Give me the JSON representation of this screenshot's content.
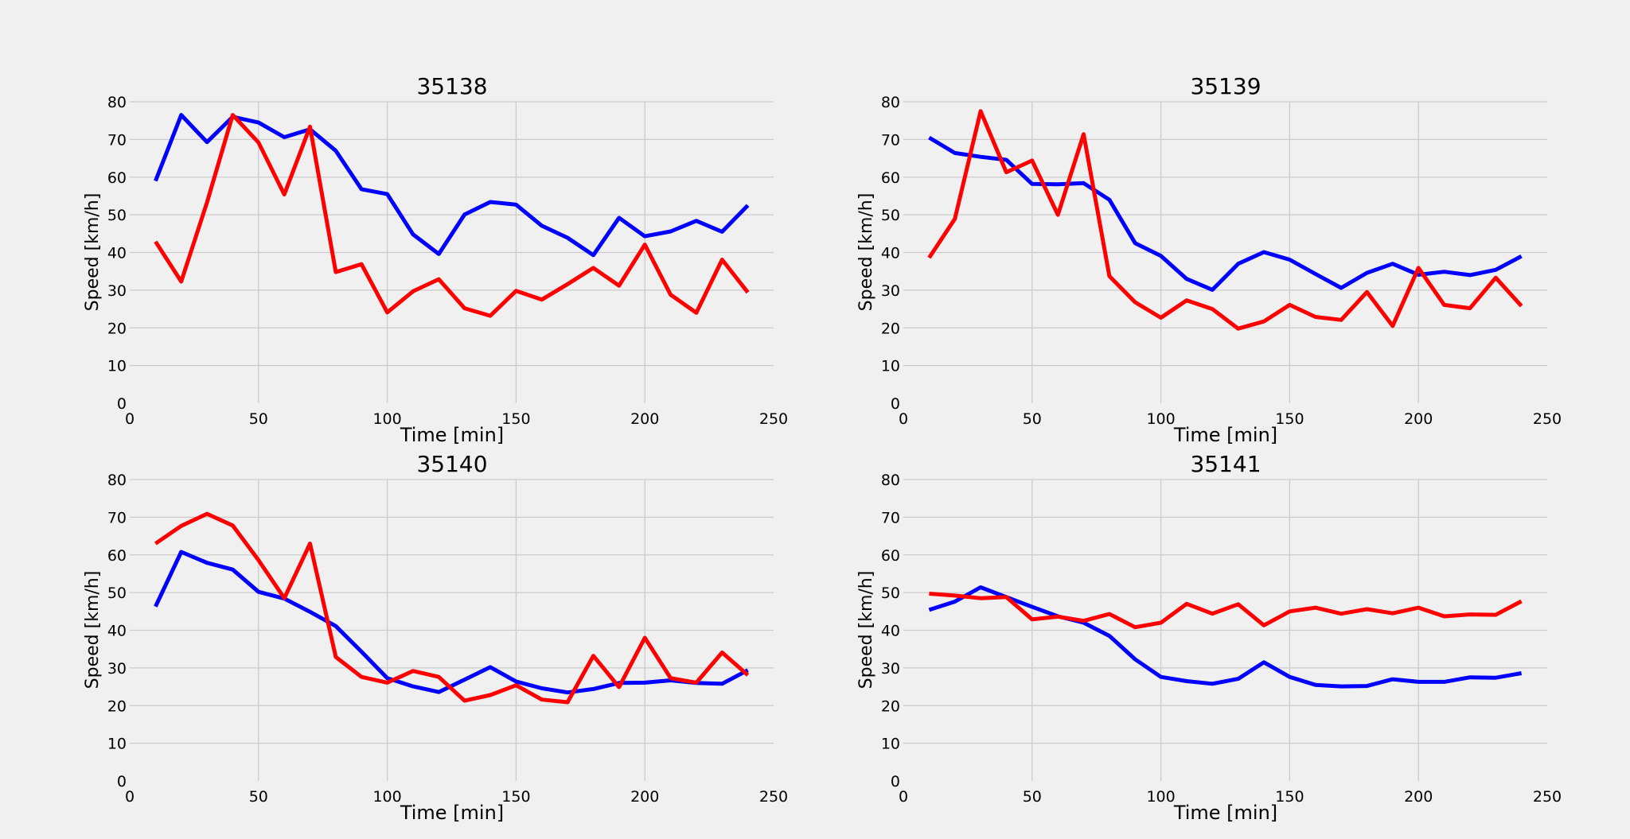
{
  "figure": {
    "background": "#f0f0f0"
  },
  "colors": {
    "series_a": "#0000ff",
    "series_b": "#ff0000",
    "grid": "#cbcbcb",
    "text": "#000000"
  },
  "chart_data": [
    {
      "type": "line",
      "title": "35138",
      "xlabel": "Time [min]",
      "ylabel": "Speed [km/h]",
      "xlim": [
        0,
        250
      ],
      "ylim": [
        0,
        80
      ],
      "xticks": [
        0,
        50,
        100,
        150,
        200,
        250
      ],
      "yticks": [
        0,
        10,
        20,
        30,
        40,
        50,
        60,
        70,
        80
      ],
      "grid": true,
      "x": [
        10,
        20,
        30,
        40,
        50,
        60,
        70,
        80,
        90,
        100,
        110,
        120,
        130,
        140,
        150,
        160,
        170,
        180,
        190,
        200,
        210,
        220,
        230,
        240
      ],
      "series": [
        {
          "color": "#0000ff",
          "values": [
            59,
            76.5,
            69.3,
            76,
            74.5,
            70.6,
            72.7,
            67,
            56.8,
            55.5,
            44.8,
            39.6,
            50.1,
            53.4,
            52.7,
            47.1,
            43.9,
            39.3,
            49.2,
            44.3,
            45.6,
            48.4,
            45.5,
            52.5
          ]
        },
        {
          "color": "#ff0000",
          "values": [
            42.9,
            32.3,
            53.3,
            76.5,
            69.2,
            55.4,
            73.4,
            34.8,
            36.9,
            24.1,
            29.7,
            32.9,
            25.2,
            23.2,
            29.8,
            27.5,
            31.6,
            35.9,
            31.2,
            42.1,
            28.8,
            24,
            38.1,
            29.4
          ]
        }
      ]
    },
    {
      "type": "line",
      "title": "35139",
      "xlabel": "Time [min]",
      "ylabel": "Speed [km/h]",
      "xlim": [
        0,
        250
      ],
      "ylim": [
        0,
        80
      ],
      "xticks": [
        0,
        50,
        100,
        150,
        200,
        250
      ],
      "yticks": [
        0,
        10,
        20,
        30,
        40,
        50,
        60,
        70,
        80
      ],
      "grid": true,
      "x": [
        10,
        20,
        30,
        40,
        50,
        60,
        70,
        80,
        90,
        100,
        110,
        120,
        130,
        140,
        150,
        160,
        170,
        180,
        190,
        200,
        210,
        220,
        230,
        240
      ],
      "series": [
        {
          "color": "#0000ff",
          "values": [
            70.5,
            66.4,
            65.4,
            64.6,
            58.2,
            58.1,
            58.4,
            54,
            42.5,
            39.1,
            33,
            30.1,
            37,
            40.1,
            38.1,
            34.3,
            30.6,
            34.6,
            37,
            34.1,
            34.9,
            34,
            35.4,
            39
          ]
        },
        {
          "color": "#ff0000",
          "values": [
            38.6,
            48.9,
            77.5,
            61.3,
            64.4,
            50,
            71.4,
            33.7,
            26.8,
            22.7,
            27.3,
            25,
            19.8,
            21.7,
            26.1,
            22.9,
            22.1,
            29.5,
            20.5,
            35.9,
            26.1,
            25.2,
            33.3,
            25.8
          ]
        }
      ]
    },
    {
      "type": "line",
      "title": "35140",
      "xlabel": "Time [min]",
      "ylabel": "Speed [km/h]",
      "xlim": [
        0,
        250
      ],
      "ylim": [
        0,
        80
      ],
      "xticks": [
        0,
        50,
        100,
        150,
        200,
        250
      ],
      "yticks": [
        0,
        10,
        20,
        30,
        40,
        50,
        60,
        70,
        80
      ],
      "grid": true,
      "x": [
        10,
        20,
        30,
        40,
        50,
        60,
        70,
        80,
        90,
        100,
        110,
        120,
        130,
        140,
        150,
        160,
        170,
        180,
        190,
        200,
        210,
        220,
        230,
        240
      ],
      "series": [
        {
          "color": "#0000ff",
          "values": [
            46.3,
            60.8,
            57.9,
            56.1,
            50.2,
            48.4,
            44.9,
            41.1,
            34.3,
            27.3,
            25.1,
            23.6,
            26.9,
            30.2,
            26.4,
            24.6,
            23.5,
            24.4,
            26,
            26.1,
            26.7,
            26,
            25.8,
            29.4
          ]
        },
        {
          "color": "#ff0000",
          "values": [
            63,
            67.7,
            70.9,
            67.8,
            58.6,
            48.5,
            63,
            32.9,
            27.6,
            26.1,
            29.2,
            27.6,
            21.3,
            22.8,
            25.4,
            21.6,
            20.9,
            33.2,
            24.9,
            38,
            27.3,
            26.1,
            34.1,
            28.1
          ]
        }
      ]
    },
    {
      "type": "line",
      "title": "35141",
      "xlabel": "Time [min]",
      "ylabel": "Speed [km/h]",
      "xlim": [
        0,
        250
      ],
      "ylim": [
        0,
        80
      ],
      "xticks": [
        0,
        50,
        100,
        150,
        200,
        250
      ],
      "yticks": [
        0,
        10,
        20,
        30,
        40,
        50,
        60,
        70,
        80
      ],
      "grid": true,
      "x": [
        10,
        20,
        30,
        40,
        50,
        60,
        70,
        80,
        90,
        100,
        110,
        120,
        130,
        140,
        150,
        160,
        170,
        180,
        190,
        200,
        210,
        220,
        230,
        240
      ],
      "series": [
        {
          "color": "#0000ff",
          "values": [
            45.4,
            47.6,
            51.4,
            48.8,
            46.2,
            43.7,
            42,
            38.5,
            32.3,
            27.6,
            26.5,
            25.8,
            27.1,
            31.5,
            27.6,
            25.5,
            25.1,
            25.2,
            27,
            26.3,
            26.3,
            27.5,
            27.4,
            28.6
          ]
        },
        {
          "color": "#ff0000",
          "values": [
            49.7,
            49.2,
            48.5,
            48.8,
            42.9,
            43.6,
            42.5,
            44.3,
            40.8,
            42,
            47,
            44.4,
            46.9,
            41.3,
            45,
            46,
            44.4,
            45.6,
            44.5,
            46,
            43.7,
            44.2,
            44.1,
            47.7
          ]
        }
      ]
    }
  ]
}
